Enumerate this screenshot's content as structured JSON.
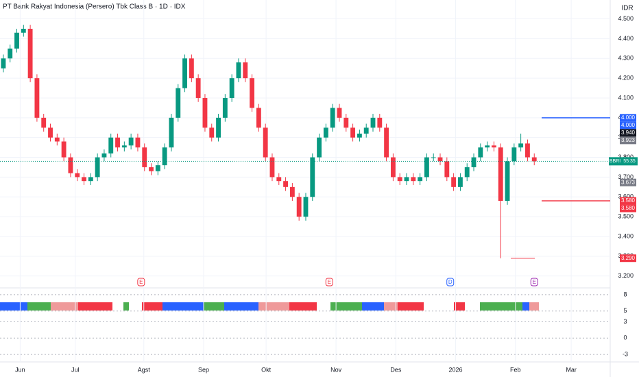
{
  "chart_data": {
    "type": "candlestick",
    "title": "PT Bank Rakyat Indonesia (Persero) Tbk Class B · 1D · IDX",
    "currency": "IDR",
    "up_color": "#089981",
    "down_color": "#f23645",
    "open": [
      4250,
      4300,
      4350,
      4430,
      4450,
      4200,
      4000,
      3950,
      3900,
      3880,
      3800,
      3720,
      3700,
      3680,
      3700,
      3800,
      3820,
      3900,
      3850,
      3860,
      3900,
      3850,
      3750,
      3730,
      3760,
      3850,
      4000,
      4150,
      4300,
      4200,
      4100,
      3950,
      3900,
      4000,
      4100,
      4200,
      4280,
      4200,
      4050,
      3950,
      3800,
      3700,
      3680,
      3650,
      3600,
      3500,
      3600,
      3800,
      3900,
      3950,
      4050,
      4000,
      3950,
      3900,
      3920,
      3950,
      4000,
      3950,
      3800,
      3700,
      3680,
      3700,
      3680,
      3700,
      3800,
      3800,
      3780,
      3700,
      3650,
      3700,
      3750,
      3800,
      3850,
      3860,
      3850,
      3580,
      3780,
      3850,
      3870,
      3800
    ],
    "high": [
      4320,
      4370,
      4450,
      4470,
      4470,
      4220,
      4020,
      3970,
      3920,
      3900,
      3820,
      3740,
      3720,
      3720,
      3820,
      3840,
      3920,
      3920,
      3880,
      3920,
      3920,
      3870,
      3770,
      3780,
      3870,
      4020,
      4170,
      4320,
      4320,
      4220,
      4120,
      3970,
      4020,
      4120,
      4220,
      4300,
      4300,
      4220,
      4070,
      3970,
      3820,
      3720,
      3700,
      3670,
      3620,
      3620,
      3820,
      3920,
      3970,
      4070,
      4070,
      4020,
      3970,
      3940,
      3970,
      4020,
      4020,
      3970,
      3820,
      3720,
      3720,
      3720,
      3720,
      3820,
      3820,
      3820,
      3800,
      3720,
      3720,
      3770,
      3820,
      3870,
      3880,
      3880,
      3870,
      3800,
      3870,
      3920,
      3890,
      3820
    ],
    "low": [
      4230,
      4280,
      4330,
      4410,
      4180,
      3980,
      3930,
      3880,
      3860,
      3780,
      3700,
      3680,
      3660,
      3660,
      3680,
      3780,
      3800,
      3830,
      3830,
      3840,
      3830,
      3730,
      3710,
      3710,
      3740,
      3830,
      3980,
      4130,
      4180,
      4080,
      3930,
      3880,
      3880,
      3980,
      4080,
      4180,
      4180,
      4030,
      3930,
      3780,
      3680,
      3660,
      3630,
      3580,
      3480,
      3480,
      3580,
      3780,
      3880,
      3930,
      3980,
      3930,
      3880,
      3880,
      3900,
      3930,
      3930,
      3780,
      3680,
      3660,
      3660,
      3660,
      3660,
      3680,
      3780,
      3760,
      3680,
      3630,
      3630,
      3680,
      3730,
      3780,
      3830,
      3830,
      3290,
      3560,
      3760,
      3830,
      3780,
      3760
    ],
    "close": [
      4300,
      4350,
      4430,
      4450,
      4200,
      4000,
      3950,
      3900,
      3880,
      3800,
      3720,
      3700,
      3680,
      3700,
      3800,
      3820,
      3900,
      3850,
      3860,
      3900,
      3850,
      3750,
      3730,
      3760,
      3850,
      4000,
      4150,
      4300,
      4200,
      4100,
      3950,
      3900,
      4000,
      4100,
      4200,
      4280,
      4200,
      4050,
      3950,
      3800,
      3700,
      3680,
      3650,
      3600,
      3500,
      3600,
      3800,
      3900,
      3950,
      4050,
      4000,
      3950,
      3900,
      3920,
      3950,
      4000,
      3950,
      3800,
      3700,
      3680,
      3700,
      3680,
      3700,
      3800,
      3800,
      3780,
      3700,
      3650,
      3700,
      3750,
      3800,
      3850,
      3860,
      3850,
      3580,
      3780,
      3850,
      3870,
      3800,
      3780
    ],
    "xlim": [
      -0.5,
      90.3
    ],
    "xticks": [
      {
        "value": 2.5,
        "label": "Jun"
      },
      {
        "value": 10.7,
        "label": "Jul"
      },
      {
        "value": 20.9,
        "label": "Agst"
      },
      {
        "value": 29.8,
        "label": "Sep"
      },
      {
        "value": 39.1,
        "label": "Okt"
      },
      {
        "value": 49.5,
        "label": "Nov"
      },
      {
        "value": 58.4,
        "label": "Des"
      },
      {
        "value": 67.3,
        "label": "2026"
      },
      {
        "value": 76.2,
        "label": "Feb"
      },
      {
        "value": 84.5,
        "label": "Mar"
      }
    ],
    "ylim": [
      3140,
      4560
    ],
    "yticks": [
      {
        "value": 3200,
        "label": "3.200"
      },
      {
        "value": 3300,
        "label": "3.300"
      },
      {
        "value": 3400,
        "label": "3.400"
      },
      {
        "value": 3500,
        "label": "3.500"
      },
      {
        "value": 3600,
        "label": "3.600"
      },
      {
        "value": 3700,
        "label": "3.700"
      },
      {
        "value": 3800,
        "label": "3.800"
      },
      {
        "value": 3900,
        "label": "3.900"
      },
      {
        "value": 4000,
        "label": "4.000"
      },
      {
        "value": 4100,
        "label": "4.100"
      },
      {
        "value": 4200,
        "label": "4.200"
      },
      {
        "value": 4300,
        "label": "4.300"
      },
      {
        "value": 4400,
        "label": "4.400"
      },
      {
        "value": 4500,
        "label": "4.500"
      }
    ],
    "price_tags": [
      {
        "value": 4000,
        "label": "4.000",
        "color": "#2962ff"
      },
      {
        "value": 4000,
        "label": "4.000",
        "color": "#2962ff"
      },
      {
        "value": 3940,
        "label": "3.940",
        "color": "#131722"
      },
      {
        "value": 3923,
        "label": "3.923",
        "color": "#787b86"
      },
      {
        "value": 3673,
        "label": "3.673",
        "color": "#787b86"
      },
      {
        "value": 3580,
        "label": "3.580",
        "color": "#f23645"
      },
      {
        "value": 3580,
        "label": "3.580",
        "color": "#f23645"
      },
      {
        "value": 3290,
        "label": "3.290",
        "color": "#f23645"
      }
    ],
    "last_price": {
      "symbol": "BBRI",
      "countdown": "55:35",
      "color": "#089981"
    },
    "events": [
      {
        "label": "E",
        "x": 20.5,
        "color": "#f23645"
      },
      {
        "label": "E",
        "x": 48.5,
        "color": "#f23645"
      },
      {
        "label": "D",
        "x": 66.5,
        "color": "#2962ff"
      },
      {
        "label": "E",
        "x": 79,
        "color": "#9c27b0"
      }
    ],
    "y2lim": [
      -4,
      9
    ],
    "y2ticks": [
      8,
      5,
      3,
      0,
      -3
    ]
  }
}
